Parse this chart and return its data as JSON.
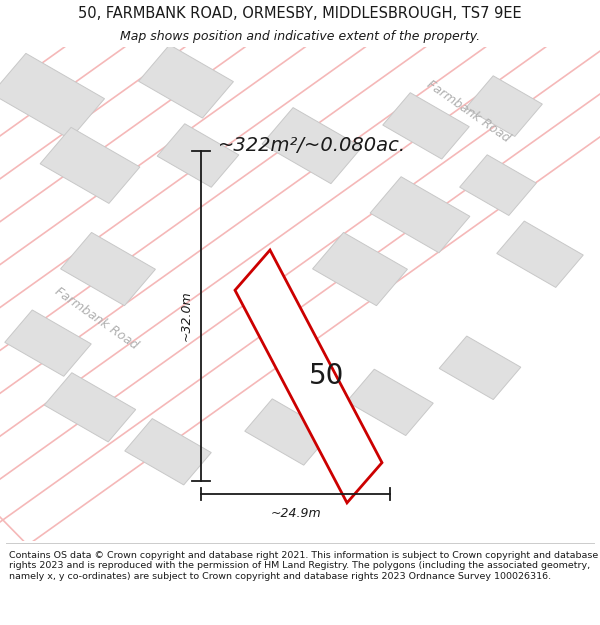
{
  "title_line1": "50, FARMBANK ROAD, ORMESBY, MIDDLESBROUGH, TS7 9EE",
  "title_line2": "Map shows position and indicative extent of the property.",
  "area_text": "~322m²/~0.080ac.",
  "label_50": "50",
  "dim_width": "~24.9m",
  "dim_height": "~32.0m",
  "road_label_top": "Farmbank Road",
  "road_label_left": "Farmbank Road",
  "footer_text": "Contains OS data © Crown copyright and database right 2021. This information is subject to Crown copyright and database rights 2023 and is reproduced with the permission of HM Land Registry. The polygons (including the associated geometry, namely x, y co-ordinates) are subject to Crown copyright and database rights 2023 Ordnance Survey 100026316.",
  "bg_color": "#ffffff",
  "map_bg_color": "#ffffff",
  "plot_fill_color": "#ffffff",
  "plot_border_color": "#cc0000",
  "street_line_color": "#f5b8b8",
  "building_fill_color": "#e0e0e0",
  "building_border_color": "#c8c8c8",
  "road_label_color": "#b0b0b0",
  "text_color": "#1a1a1a",
  "dim_line_color": "#1a1a1a",
  "footer_line_color": "#cccccc"
}
